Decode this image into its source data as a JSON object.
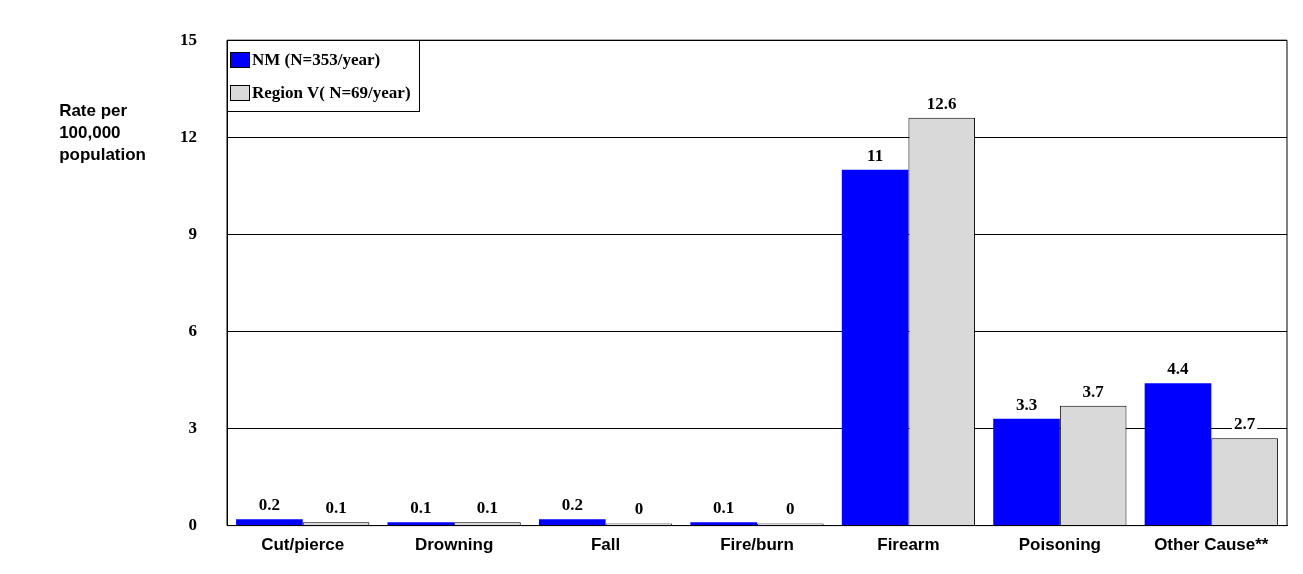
{
  "chart_data": {
    "type": "bar",
    "ylabel": "Rate per\n100,000\npopulation",
    "categories": [
      "Cut/pierce",
      "Drowning",
      "Fall",
      "Fire/burn",
      "Firearm",
      "Poisoning",
      "Other Cause**"
    ],
    "series": [
      {
        "name": "NM (N=353/year)",
        "color": "#0000ff",
        "values": [
          0.2,
          0.1,
          0.2,
          0.1,
          11,
          3.3,
          4.4
        ]
      },
      {
        "name": "Region V( N=69/year)",
        "color": "#d9d9d9",
        "values": [
          0.1,
          0.1,
          0,
          0,
          12.6,
          3.7,
          2.7
        ]
      }
    ],
    "ylim": [
      0,
      15
    ],
    "yticks": [
      0,
      3,
      6,
      9,
      12,
      15
    ],
    "grid": "y",
    "legend": "top left",
    "data_labels": true
  }
}
